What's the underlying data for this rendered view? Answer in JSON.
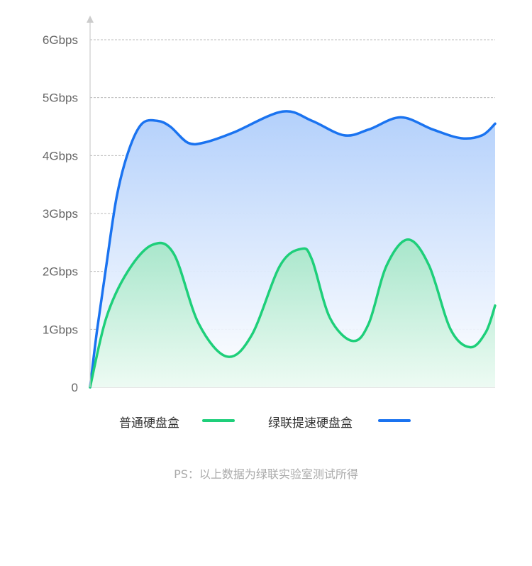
{
  "chart_data": {
    "type": "area",
    "ylim": [
      0,
      6
    ],
    "xlim": [
      0,
      100
    ],
    "y_ticks": [
      "0",
      "1Gbps",
      "2Gbps",
      "3Gbps",
      "4Gbps",
      "5Gbps",
      "6Gbps"
    ],
    "grid": true,
    "legend_position": "bottom",
    "series": [
      {
        "name": "普通硬盘盒",
        "color": "#1ecf7a",
        "x": [
          0,
          4,
          9.3,
          15.4,
          20.7,
          26.8,
          33.8,
          39.9,
          46.9,
          52.2,
          54.8,
          59.2,
          64.8,
          68.8,
          73.2,
          78.5,
          83.7,
          89,
          93.9,
          97.7,
          100
        ],
        "y": [
          0,
          1.2,
          2.0,
          2.46,
          2.3,
          1.1,
          0.53,
          0.9,
          2.1,
          2.39,
          2.2,
          1.2,
          0.8,
          1.1,
          2.1,
          2.55,
          2.1,
          1.0,
          0.69,
          0.95,
          1.41
        ]
      },
      {
        "name": "绿联提速硬盘盒",
        "color": "#1a73f0",
        "x": [
          0,
          1.75,
          4,
          6.6,
          9.6,
          12.8,
          16.6,
          19.8,
          24.2,
          28.5,
          35.5,
          47.5,
          54.8,
          62.7,
          68.8,
          76.7,
          84.6,
          91.6,
          96.8,
          100
        ],
        "y": [
          0,
          1.0,
          2.1,
          3.3,
          4.1,
          4.55,
          4.6,
          4.5,
          4.22,
          4.23,
          4.4,
          4.76,
          4.6,
          4.35,
          4.45,
          4.66,
          4.45,
          4.3,
          4.35,
          4.55
        ]
      }
    ]
  },
  "note": "PS：以上数据为绿联实验室测试所得"
}
